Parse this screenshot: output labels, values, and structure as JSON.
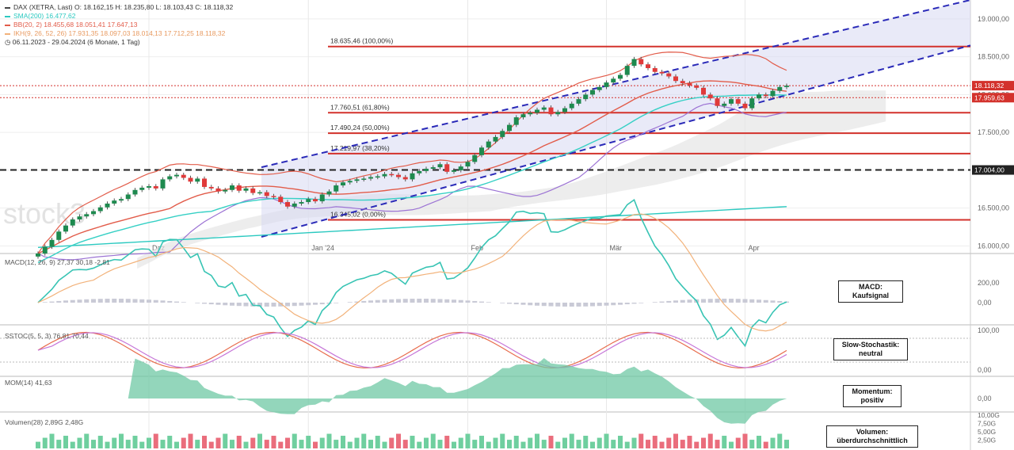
{
  "header": {
    "line1_name": "DAX (XETRA, Last)",
    "line1_values": "O: 18.162,15  H: 18.235,80  L: 18.103,43  C: 18.118,32",
    "line2": "SMA(200)  16.477,62",
    "line3": "BB(20, 2)  18.455,68  18.051,41  17.647,13",
    "line4": "IKH(9, 26, 52, 26)  17.931,35  18.097,03  18.014,13  17.712,25  18.118,32",
    "line5": "06.11.2023 - 29.04.2024  (6 Monate, 1 Tag)"
  },
  "colors": {
    "up": "#1e8a4f",
    "down": "#e03a3a",
    "sma": "#2bc9c0",
    "bb": "#e25c4a",
    "fib": "#d3322c",
    "channel": "#2a2ab8",
    "macd": "#38c4b4",
    "signal": "#f2b27a",
    "stoch_k": "#e86d4d",
    "stoch_d": "#c676d8",
    "momentum": "#6fc8a4",
    "volume_up": "#6fcf9f",
    "volume_down": "#ea6d7c"
  },
  "fib_labels": [
    "18.635,46 (100,00%)",
    "17.760,51 (61,80%)",
    "17.490,24 (50,00%)",
    "17.219,97 (38,20%)",
    "16.345,02 (0,00%)"
  ],
  "price_axis": [
    "19.000,00",
    "18.500,00",
    "18.000,00",
    "17.500,00",
    "17.000,00",
    "16.500,00",
    "16.000,00"
  ],
  "price_labels": {
    "last": "18.118,32",
    "second": "17.959,63",
    "dashed": "17.004,00"
  },
  "months": [
    "Dez",
    "Jan '24",
    "Feb",
    "Mär",
    "Apr"
  ],
  "watermark": "stock3",
  "panels": {
    "macd": {
      "legend": "MACD(12, 26, 9)  27,37  30,18  -2,81",
      "axis": [
        "200,00",
        "0,00"
      ],
      "annotation_title": "MACD:",
      "annotation_value": "Kaufsignal"
    },
    "stoch": {
      "legend": "SSTOC(5, 5, 3)  76,81  70,44",
      "axis": [
        "100,00",
        "0,00"
      ],
      "annotation_title": "Slow-Stochastik:",
      "annotation_value": "neutral"
    },
    "mom": {
      "legend": "MOM(14)  41,63",
      "axis": [
        "0,00"
      ],
      "annotation_title": "Momentum:",
      "annotation_value": "positiv"
    },
    "vol": {
      "legend": "Volumen(28)  2,89G  2,48G",
      "axis": [
        "10,00G",
        "7,50G",
        "5,00G",
        "2,50G"
      ],
      "annotation_title": "Volumen:",
      "annotation_value": "überdurchschnittlich"
    }
  },
  "chart_data": {
    "type": "candlestick",
    "title": "DAX (XETRA, Last)",
    "period": "06.11.2023 - 29.04.2024",
    "y_range": [
      15900,
      19250
    ],
    "fibonacci": [
      {
        "label": "100,00%",
        "value": 18635.46
      },
      {
        "label": "61,80%",
        "value": 17760.51
      },
      {
        "label": "50,00%",
        "value": 17490.24
      },
      {
        "label": "38,20%",
        "value": 17219.97
      },
      {
        "label": "0,00%",
        "value": 16345.02
      }
    ],
    "last_close": 18118.32,
    "horizontal_level": 17004.0,
    "indicators": {
      "sma200": 16477.62,
      "bb": [
        18455.68,
        18051.41,
        17647.13
      ],
      "macd": [
        27.37,
        30.18,
        -2.81
      ],
      "sstoc": [
        76.81,
        70.44
      ],
      "mom": 41.63,
      "volume": [
        "2,89G",
        "2,48G"
      ]
    },
    "closes": [
      15900,
      15990,
      16080,
      16190,
      16270,
      16350,
      16390,
      16420,
      16460,
      16510,
      16560,
      16600,
      16620,
      16680,
      16740,
      16770,
      16790,
      16760,
      16880,
      16920,
      16940,
      16900,
      16850,
      16890,
      16780,
      16760,
      16720,
      16740,
      16800,
      16730,
      16760,
      16700,
      16710,
      16660,
      16650,
      16580,
      16520,
      16560,
      16580,
      16620,
      16590,
      16680,
      16720,
      16800,
      16840,
      16860,
      16880,
      16890,
      16910,
      16920,
      16950,
      16940,
      16910,
      16880,
      16960,
      16990,
      17020,
      17040,
      17080,
      16980,
      17000,
      17050,
      17110,
      17200,
      17300,
      17380,
      17440,
      17520,
      17600,
      17700,
      17740,
      17760,
      17800,
      17830,
      17740,
      17770,
      17820,
      17880,
      17940,
      18000,
      18060,
      18100,
      18160,
      18210,
      18260,
      18380,
      18470,
      18400,
      18350,
      18300,
      18280,
      18240,
      18180,
      18150,
      18120,
      18090,
      18000,
      17950,
      17850,
      17880,
      17940,
      17880,
      17820,
      17950,
      18000,
      17980,
      18050,
      18100,
      18118
    ]
  }
}
